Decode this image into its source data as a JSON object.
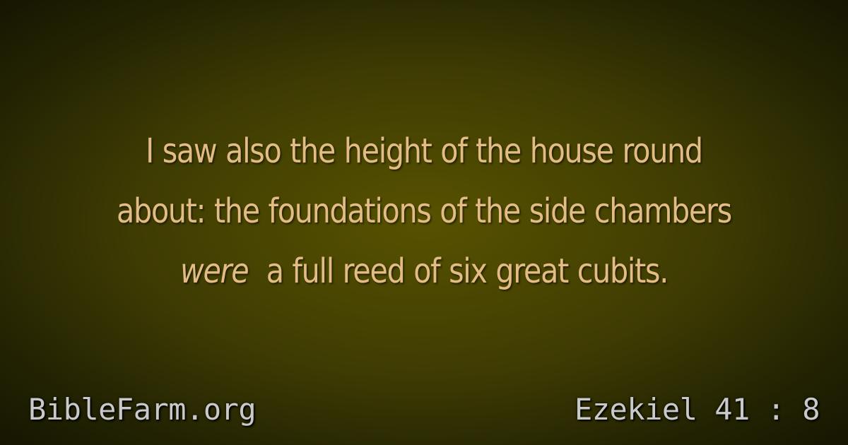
{
  "verse": {
    "line1": "I saw also the height of the house round",
    "line2": "about: the foundations of the side chambers",
    "line3_italic": "were",
    "line3_rest": "a full reed of six great cubits."
  },
  "footer": {
    "site": "BibleFarm.org",
    "reference": "Ezekiel 41 : 8"
  },
  "colors": {
    "verse_text": "#e2bc84",
    "footer_text": "#c9c9c9",
    "background_center": "#575200",
    "background_edge": "#121201"
  }
}
